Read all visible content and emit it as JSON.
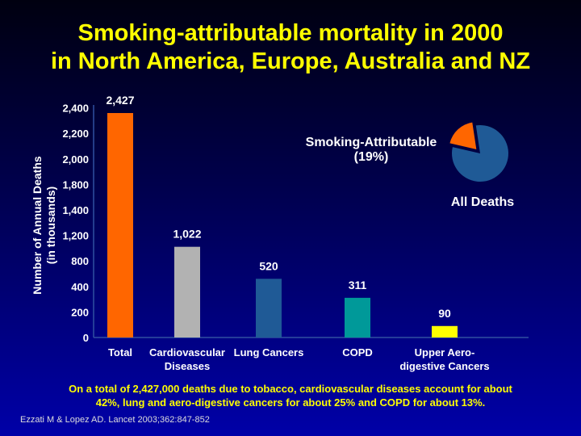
{
  "title_line1": "Smoking-attributable mortality in 2000",
  "title_line2": "in North America, Europe, Australia and NZ",
  "chart_data": {
    "type": "bar",
    "title": "Smoking-attributable mortality in 2000 in North America, Europe, Australia and NZ",
    "ylabel_line1": "Number of Annual Deaths",
    "ylabel_line2": "(in thousands)",
    "yticks": [
      "0",
      "200",
      "400",
      "800",
      "1,200",
      "1,400",
      "1,800",
      "2,000",
      "2,200",
      "2,400"
    ],
    "ytick_values": [
      0,
      200,
      400,
      800,
      1200,
      1400,
      1800,
      2000,
      2200,
      2400
    ],
    "categories": [
      [
        "Total"
      ],
      [
        "Cardiovascular",
        "Diseases"
      ],
      [
        "Lung Cancers"
      ],
      [
        "COPD"
      ],
      [
        "Upper Aero-",
        "digestive Cancers"
      ]
    ],
    "values": [
      2427,
      1022,
      520,
      311,
      90
    ],
    "value_labels": [
      "2,427",
      "1,022",
      "520",
      "311",
      "90"
    ],
    "colors": [
      "#FF6600",
      "#B2B2B2",
      "#1F5A96",
      "#009999",
      "#FFFF00"
    ],
    "inset_pie": {
      "type": "pie",
      "slices": [
        {
          "label": "Smoking-Attributable",
          "pct_label": "(19%)",
          "value": 19,
          "color": "#FF6600"
        },
        {
          "label": "All Deaths",
          "value": 81,
          "color": "#1F5A96"
        }
      ]
    }
  },
  "footnote_line1": "On a total of 2,427,000 deaths due to tobacco, cardiovascular diseases account for about",
  "footnote_line2": "42%, lung and aero-digestive cancers for about 25% and COPD for about 13%.",
  "citation": "Ezzati M & Lopez AD. Lancet 2003;362:847-852"
}
